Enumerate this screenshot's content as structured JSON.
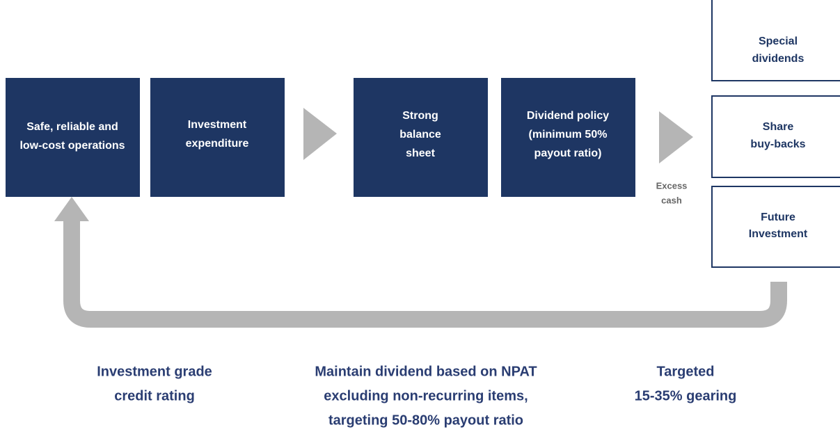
{
  "boxes": [
    {
      "lines": [
        "Safe, reliable and",
        "low-cost operations"
      ]
    },
    {
      "lines": [
        "Investment",
        "expenditure"
      ]
    },
    {
      "lines": [
        "Strong",
        "balance",
        "sheet"
      ]
    },
    {
      "lines": [
        "Dividend policy",
        "(minimum 50%",
        "payout ratio)"
      ]
    }
  ],
  "excess": {
    "lines": [
      "Excess",
      "cash"
    ]
  },
  "outcomes": [
    {
      "lines": [
        "Special",
        "dividends"
      ]
    },
    {
      "lines": [
        "Share",
        "buy-backs"
      ]
    },
    {
      "lines": [
        "Future",
        "Investment"
      ]
    }
  ],
  "captions": [
    {
      "lines": [
        "Investment grade",
        "credit rating"
      ]
    },
    {
      "lines": [
        "Maintain dividend based on NPAT",
        "excluding non-recurring items,",
        "targeting 50-80% payout ratio"
      ]
    },
    {
      "lines": [
        "Targeted",
        "15-35% gearing"
      ]
    }
  ]
}
